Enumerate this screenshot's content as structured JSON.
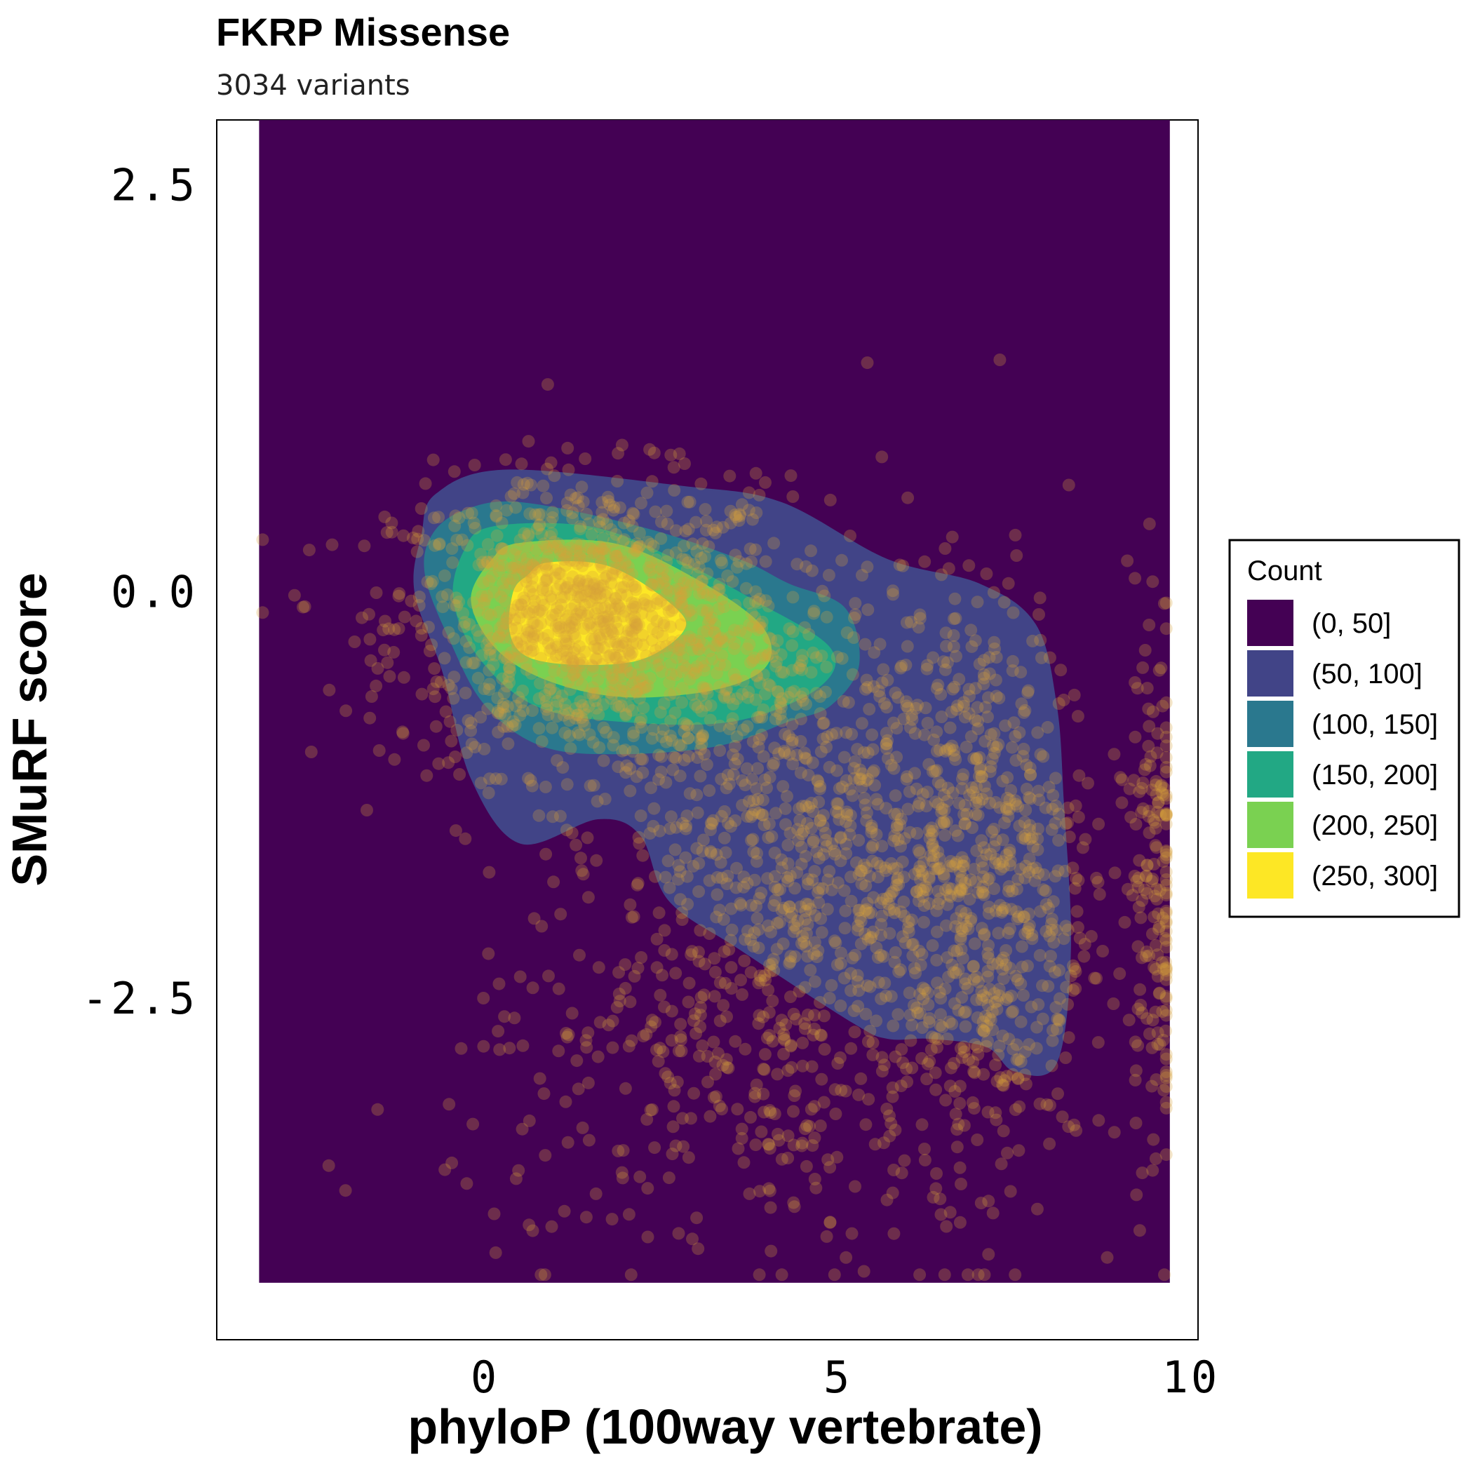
{
  "chart_data": {
    "type": "density-contour-scatter",
    "title": "FKRP Missense",
    "subtitle": "3034 variants",
    "xlabel": "phyloP (100way vertebrate)",
    "ylabel": "SMuRF score",
    "xlim": [
      -3.8,
      10.1
    ],
    "ylim": [
      -4.6,
      2.9
    ],
    "x_ticks": [
      {
        "value": 0,
        "label": "0"
      },
      {
        "value": 5,
        "label": "5"
      },
      {
        "value": 10,
        "label": "10"
      }
    ],
    "y_ticks": [
      {
        "value": 2.5,
        "label": "2.5"
      },
      {
        "value": 0.0,
        "label": "0.0"
      },
      {
        "value": -2.5,
        "label": "-2.5"
      }
    ],
    "grid": false,
    "legend": {
      "title": "Count",
      "position": "right",
      "levels": [
        {
          "label": "(0, 50]",
          "color": "#440154"
        },
        {
          "label": "(50, 100]",
          "color": "#414487"
        },
        {
          "label": "(100, 150]",
          "color": "#2A788E"
        },
        {
          "label": "(150, 200]",
          "color": "#22A884"
        },
        {
          "label": "(200, 250]",
          "color": "#7AD151"
        },
        {
          "label": "(250, 300]",
          "color": "#FDE725"
        }
      ]
    },
    "density_domain": {
      "x": [
        -3.2,
        9.7
      ],
      "y": [
        -4.25,
        2.9
      ]
    },
    "contours": [
      {
        "level": "(50, 100]",
        "color": "#414487",
        "points": [
          [
            -0.7,
            0.6
          ],
          [
            0.3,
            0.75
          ],
          [
            2.8,
            0.65
          ],
          [
            4.2,
            0.55
          ],
          [
            5.7,
            0.2
          ],
          [
            7.0,
            0.05
          ],
          [
            7.8,
            -0.2
          ],
          [
            8.1,
            -0.7
          ],
          [
            8.2,
            -1.3
          ],
          [
            8.3,
            -2.2
          ],
          [
            8.1,
            -2.9
          ],
          [
            7.5,
            -2.95
          ],
          [
            7.1,
            -2.8
          ],
          [
            6.3,
            -2.75
          ],
          [
            5.7,
            -2.75
          ],
          [
            5.2,
            -2.65
          ],
          [
            3.6,
            -2.2
          ],
          [
            2.6,
            -1.9
          ],
          [
            2.2,
            -1.5
          ],
          [
            1.6,
            -1.4
          ],
          [
            0.5,
            -1.55
          ],
          [
            -0.2,
            -1.15
          ],
          [
            -0.6,
            -0.5
          ],
          [
            -1.0,
            0.0
          ],
          [
            -0.9,
            0.35
          ]
        ]
      },
      {
        "level": "(100, 150]",
        "color": "#2A788E",
        "points": [
          [
            -0.3,
            0.5
          ],
          [
            0.5,
            0.55
          ],
          [
            2.2,
            0.4
          ],
          [
            3.6,
            0.2
          ],
          [
            4.3,
            0.05
          ],
          [
            5.1,
            -0.1
          ],
          [
            5.3,
            -0.45
          ],
          [
            4.9,
            -0.7
          ],
          [
            4.3,
            -0.8
          ],
          [
            3.3,
            -0.95
          ],
          [
            1.9,
            -1.0
          ],
          [
            0.8,
            -0.95
          ],
          [
            0.0,
            -0.7
          ],
          [
            -0.5,
            -0.3
          ],
          [
            -0.85,
            0.1
          ],
          [
            -0.75,
            0.35
          ]
        ]
      },
      {
        "level": "(150, 200]",
        "color": "#22A884",
        "points": [
          [
            0.1,
            0.4
          ],
          [
            1.5,
            0.4
          ],
          [
            2.7,
            0.2
          ],
          [
            3.8,
            -0.05
          ],
          [
            4.9,
            -0.35
          ],
          [
            4.7,
            -0.6
          ],
          [
            3.5,
            -0.8
          ],
          [
            1.9,
            -0.8
          ],
          [
            0.7,
            -0.7
          ],
          [
            -0.1,
            -0.4
          ],
          [
            -0.45,
            -0.05
          ],
          [
            -0.3,
            0.25
          ]
        ]
      },
      {
        "level": "(200, 250]",
        "color": "#7AD151",
        "points": [
          [
            0.5,
            0.3
          ],
          [
            1.8,
            0.3
          ],
          [
            2.9,
            0.1
          ],
          [
            3.9,
            -0.2
          ],
          [
            4.0,
            -0.45
          ],
          [
            3.3,
            -0.6
          ],
          [
            2.0,
            -0.65
          ],
          [
            0.9,
            -0.55
          ],
          [
            0.15,
            -0.35
          ],
          [
            -0.2,
            -0.05
          ],
          [
            0.1,
            0.2
          ]
        ]
      },
      {
        "level": "(250, 300]",
        "color": "#FDE725",
        "points": [
          [
            0.9,
            0.18
          ],
          [
            1.8,
            0.15
          ],
          [
            2.7,
            -0.1
          ],
          [
            2.8,
            -0.25
          ],
          [
            2.2,
            -0.42
          ],
          [
            1.3,
            -0.45
          ],
          [
            0.6,
            -0.4
          ],
          [
            0.35,
            -0.25
          ],
          [
            0.4,
            0.0
          ],
          [
            0.6,
            0.1
          ]
        ]
      }
    ],
    "scatter_summary": {
      "n_points": 3034,
      "description_clusters": [
        {
          "x_center": 1.5,
          "y_center": -0.2,
          "x_sd": 1.4,
          "y_sd": 0.45,
          "share": 0.38
        },
        {
          "x_center": 4.5,
          "y_center": -1.5,
          "x_sd": 1.3,
          "y_sd": 0.8,
          "share": 0.24
        },
        {
          "x_center": 7.0,
          "y_center": -1.8,
          "x_sd": 0.8,
          "y_sd": 0.9,
          "share": 0.22
        },
        {
          "x_center": 9.5,
          "y_center": -1.8,
          "x_sd": 0.2,
          "y_sd": 0.9,
          "share": 0.06
        },
        {
          "x_center": 3.5,
          "y_center": -3.0,
          "x_sd": 2.0,
          "y_sd": 0.6,
          "share": 0.1
        }
      ],
      "point_color": "#D6A33B",
      "point_opacity": 0.28
    }
  }
}
